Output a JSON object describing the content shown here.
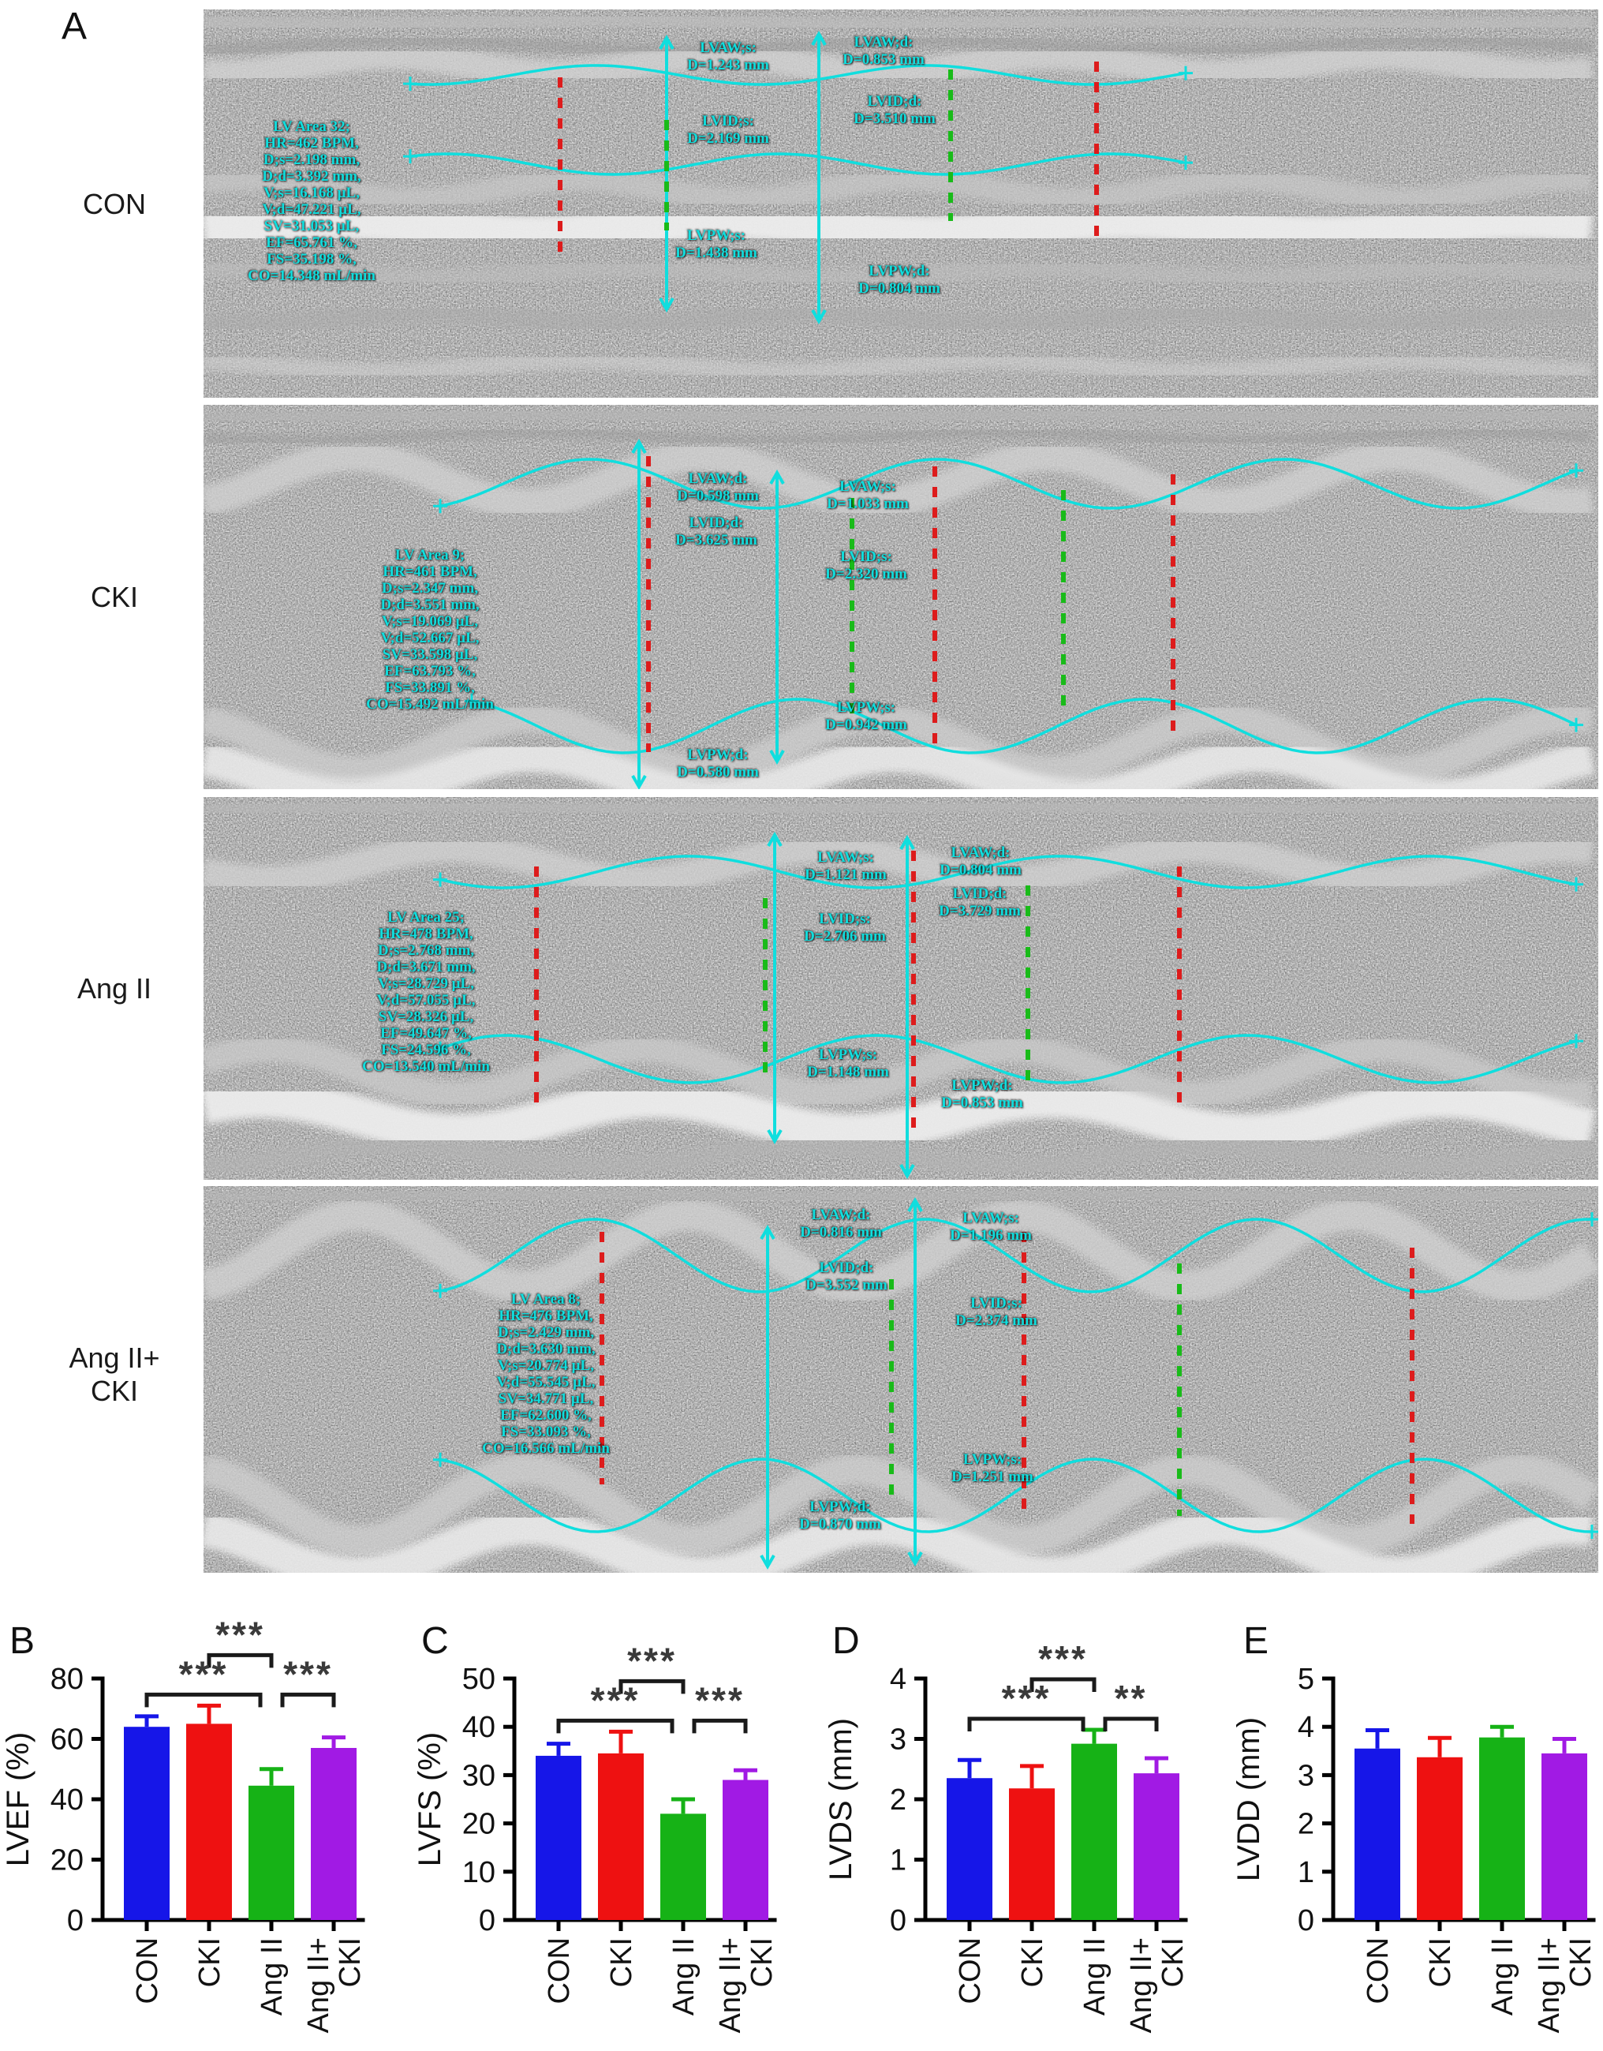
{
  "figure": {
    "panel_a_letter": "A",
    "rows": [
      {
        "label_lines": [
          "CON"
        ],
        "stats": [
          "LV Area 32;",
          "HR=462 BPM,",
          "D;s=2.198 mm,",
          "D;d=3.392 mm,",
          "V;s=16.168 µL,",
          "V;d=47.221 µL,",
          "SV=31.053 µL,",
          "EF=65.761 %,",
          "FS=35.198 %,",
          "CO=14.348 mL/min"
        ],
        "meas": [
          {
            "name": "LVAW;s:",
            "value": "D=1.243 mm"
          },
          {
            "name": "LVID;s:",
            "value": "D=2.169 mm"
          },
          {
            "name": "LVPW;s:",
            "value": "D=1.438 mm"
          },
          {
            "name": "LVAW;d:",
            "value": "D=0.853 mm"
          },
          {
            "name": "LVID;d:",
            "value": "D=3.510 mm"
          },
          {
            "name": "LVPW;d:",
            "value": "D=0.804 mm"
          }
        ]
      },
      {
        "label_lines": [
          "CKI"
        ],
        "stats": [
          "LV Area 9;",
          "HR=461 BPM,",
          "D;s=2.347 mm,",
          "D;d=3.551 mm,",
          "V;s=19.069 µL,",
          "V;d=52.667 µL,",
          "SV=33.598 µL,",
          "EF=63.793 %,",
          "FS=33.891 %,",
          "CO=15.492 mL/min"
        ],
        "meas": [
          {
            "name": "LVAW;d:",
            "value": "D=0.598 mm"
          },
          {
            "name": "LVID;d:",
            "value": "D=3.625 mm"
          },
          {
            "name": "LVPW;d:",
            "value": "D=0.580 mm"
          },
          {
            "name": "LVAW;s:",
            "value": "D=1.033 mm"
          },
          {
            "name": "LVID;s:",
            "value": "D=2.320 mm"
          },
          {
            "name": "LVPW;s:",
            "value": "D=0.942 mm"
          }
        ]
      },
      {
        "label_lines": [
          "Ang II"
        ],
        "stats": [
          "LV Area 25;",
          "HR=478 BPM,",
          "D;s=2.768 mm,",
          "D;d=3.671 mm,",
          "V;s=28.729 µL,",
          "V;d=57.055 µL,",
          "SV=28.326 µL,",
          "EF=49.647 %,",
          "FS=24.596 %,",
          "CO=13.540 mL/min"
        ],
        "meas": [
          {
            "name": "LVAW;s:",
            "value": "D=1.121 mm"
          },
          {
            "name": "LVID;s:",
            "value": "D=2.706 mm"
          },
          {
            "name": "LVPW;s:",
            "value": "D=1.148 mm"
          },
          {
            "name": "LVAW;d:",
            "value": "D=0.804 mm"
          },
          {
            "name": "LVID;d:",
            "value": "D=3.729 mm"
          },
          {
            "name": "LVPW;d:",
            "value": "D=0.853 mm"
          }
        ]
      },
      {
        "label_lines": [
          "Ang II+",
          "CKI"
        ],
        "stats": [
          "LV Area 8;",
          "HR=476 BPM,",
          "D;s=2.429 mm,",
          "D;d=3.630 mm,",
          "V;s=20.774 µL,",
          "V;d=55.545 µL,",
          "SV=34.771 µL,",
          "EF=62.600 %,",
          "FS=33.093 %,",
          "CO=16.566 mL/min"
        ],
        "meas": [
          {
            "name": "LVAW;d:",
            "value": "D=0.816 mm"
          },
          {
            "name": "LVID;d:",
            "value": "D=3.552 mm"
          },
          {
            "name": "LVPW;d:",
            "value": "D=0.870 mm"
          },
          {
            "name": "LVAW;s:",
            "value": "D=1.196 mm"
          },
          {
            "name": "LVID;s:",
            "value": "D=2.374 mm"
          },
          {
            "name": "LVPW;s:",
            "value": "D=1.251 mm"
          }
        ]
      }
    ]
  },
  "chart_data": [
    {
      "type": "bar",
      "letter": "B",
      "ylabel": "LVEF (%)",
      "categories": [
        [
          "CON"
        ],
        [
          "CKI"
        ],
        [
          "Ang II"
        ],
        [
          "Ang II+",
          "CKI"
        ]
      ],
      "values": [
        64,
        65,
        44.5,
        57
      ],
      "errors": [
        3.5,
        6,
        5.5,
        3.5
      ],
      "bar_colors": [
        "#1616e8",
        "#ee1111",
        "#16b216",
        "#a11ae4"
      ],
      "ylim": [
        0,
        80
      ],
      "yticks": [
        0,
        20,
        40,
        60,
        80
      ],
      "grid": "off",
      "significance": [
        {
          "a": 1,
          "b": 2,
          "label": "***",
          "level": 2,
          "aoff": 0,
          "boff": 0
        },
        {
          "a": 0,
          "b": 2,
          "label": "***",
          "level": 1,
          "aoff": 0,
          "boff": -14
        },
        {
          "a": 2,
          "b": 3,
          "label": "***",
          "level": 1,
          "aoff": 14,
          "boff": 0
        }
      ]
    },
    {
      "type": "bar",
      "letter": "C",
      "ylabel": "LVFS (%)",
      "categories": [
        [
          "CON"
        ],
        [
          "CKI"
        ],
        [
          "Ang II"
        ],
        [
          "Ang II+",
          "CKI"
        ]
      ],
      "values": [
        34,
        34.5,
        22,
        29
      ],
      "errors": [
        2.5,
        4.5,
        3,
        2
      ],
      "bar_colors": [
        "#1616e8",
        "#ee1111",
        "#16b216",
        "#a11ae4"
      ],
      "ylim": [
        0,
        50
      ],
      "yticks": [
        0,
        10,
        20,
        30,
        40,
        50
      ],
      "grid": "off",
      "significance": [
        {
          "a": 1,
          "b": 2,
          "label": "***",
          "level": 2,
          "aoff": 0,
          "boff": 0
        },
        {
          "a": 0,
          "b": 2,
          "label": "***",
          "level": 1,
          "aoff": 0,
          "boff": -14
        },
        {
          "a": 2,
          "b": 3,
          "label": "***",
          "level": 1,
          "aoff": 14,
          "boff": 0
        }
      ]
    },
    {
      "type": "bar",
      "letter": "D",
      "ylabel": "LVDS (mm)",
      "categories": [
        [
          "CON"
        ],
        [
          "CKI"
        ],
        [
          "Ang II"
        ],
        [
          "Ang II+",
          "CKI"
        ]
      ],
      "values": [
        2.35,
        2.18,
        2.92,
        2.43
      ],
      "errors": [
        0.3,
        0.37,
        0.23,
        0.25
      ],
      "bar_colors": [
        "#1616e8",
        "#ee1111",
        "#16b216",
        "#a11ae4"
      ],
      "ylim": [
        0,
        4
      ],
      "yticks": [
        0,
        1,
        2,
        3,
        4
      ],
      "grid": "off",
      "significance": [
        {
          "a": 1,
          "b": 2,
          "label": "***",
          "level": 2,
          "aoff": 0,
          "boff": 0
        },
        {
          "a": 0,
          "b": 2,
          "label": "***",
          "level": 1,
          "aoff": 0,
          "boff": -14
        },
        {
          "a": 2,
          "b": 3,
          "label": "**",
          "level": 1,
          "aoff": 14,
          "boff": 0
        }
      ]
    },
    {
      "type": "bar",
      "letter": "E",
      "ylabel": "LVDD (mm)",
      "categories": [
        [
          "CON"
        ],
        [
          "CKI"
        ],
        [
          "Ang II"
        ],
        [
          "Ang II+",
          "CKI"
        ]
      ],
      "values": [
        3.55,
        3.37,
        3.78,
        3.45
      ],
      "errors": [
        0.38,
        0.4,
        0.22,
        0.3
      ],
      "bar_colors": [
        "#1616e8",
        "#ee1111",
        "#16b216",
        "#a11ae4"
      ],
      "ylim": [
        0,
        5
      ],
      "yticks": [
        0,
        1,
        2,
        3,
        4,
        5
      ],
      "grid": "off",
      "significance": []
    }
  ],
  "colors": {
    "annotation_cyan": "#10dede",
    "dash_red": "#dd1c1c",
    "dash_green": "#19bb19",
    "bar_blue": "#1616e8",
    "bar_red": "#ee1111",
    "bar_green": "#16b216",
    "bar_purple": "#a11ae4"
  }
}
